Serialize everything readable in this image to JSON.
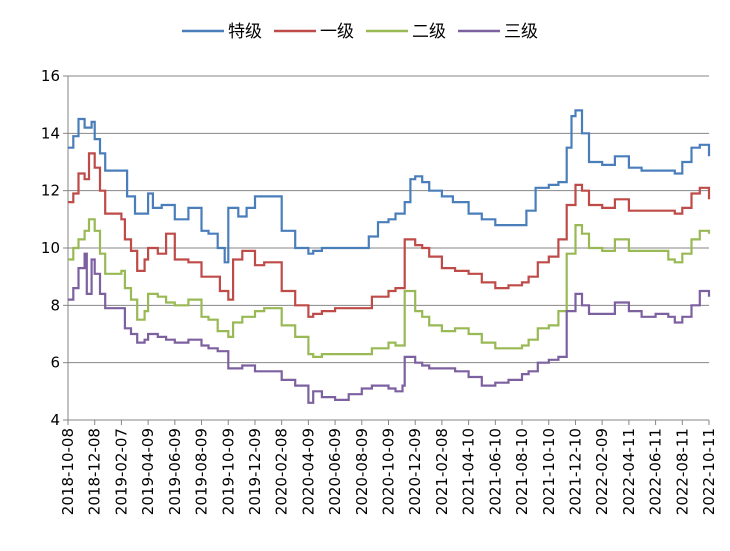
{
  "chart_data": {
    "type": "line",
    "title": "",
    "xlabel": "",
    "ylabel": "",
    "ylim": [
      4,
      16
    ],
    "yticks": [
      "4",
      "6",
      "8",
      "10",
      "12",
      "14",
      "16"
    ],
    "grid": "horizontal",
    "legend_position": "top",
    "x_tick_labels": [
      "2018-10-08",
      "2018-12-08",
      "2019-02-07",
      "2019-04-09",
      "2019-06-09",
      "2019-08-09",
      "2019-10-09",
      "2019-12-09",
      "2020-02-08",
      "2020-04-09",
      "2020-06-09",
      "2020-08-09",
      "2020-10-09",
      "2020-12-09",
      "2021-02-08",
      "2021-04-10",
      "2021-06-10",
      "2021-08-10",
      "2021-10-10",
      "2021-12-10",
      "2022-02-09",
      "2022-04-11",
      "2022-06-11",
      "2022-08-11",
      "2022-10-11"
    ],
    "series": [
      {
        "name": "特级",
        "color": "#4a7ebb",
        "points": [
          [
            "2018-10-08",
            13.5
          ],
          [
            "2018-10-20",
            13.9
          ],
          [
            "2018-11-01",
            14.5
          ],
          [
            "2018-11-15",
            14.2
          ],
          [
            "2018-12-01",
            14.4
          ],
          [
            "2018-12-08",
            13.8
          ],
          [
            "2018-12-20",
            13.3
          ],
          [
            "2019-01-01",
            12.7
          ],
          [
            "2019-02-07",
            12.7
          ],
          [
            "2019-02-20",
            11.8
          ],
          [
            "2019-03-10",
            11.2
          ],
          [
            "2019-04-01",
            11.2
          ],
          [
            "2019-04-09",
            11.9
          ],
          [
            "2019-04-20",
            11.4
          ],
          [
            "2019-05-10",
            11.5
          ],
          [
            "2019-06-09",
            11.0
          ],
          [
            "2019-07-10",
            11.4
          ],
          [
            "2019-08-09",
            10.6
          ],
          [
            "2019-08-25",
            10.5
          ],
          [
            "2019-09-15",
            10.0
          ],
          [
            "2019-10-01",
            9.5
          ],
          [
            "2019-10-09",
            11.4
          ],
          [
            "2019-11-01",
            11.1
          ],
          [
            "2019-11-20",
            11.4
          ],
          [
            "2019-12-09",
            11.8
          ],
          [
            "2019-12-30",
            11.8
          ],
          [
            "2020-02-08",
            10.6
          ],
          [
            "2020-03-10",
            10.0
          ],
          [
            "2020-04-09",
            9.8
          ],
          [
            "2020-04-20",
            9.9
          ],
          [
            "2020-05-10",
            10.0
          ],
          [
            "2020-06-09",
            10.0
          ],
          [
            "2020-07-10",
            10.0
          ],
          [
            "2020-08-09",
            10.0
          ],
          [
            "2020-08-25",
            10.4
          ],
          [
            "2020-09-15",
            10.9
          ],
          [
            "2020-10-09",
            11.0
          ],
          [
            "2020-10-25",
            11.2
          ],
          [
            "2020-11-15",
            11.6
          ],
          [
            "2020-11-28",
            12.4
          ],
          [
            "2020-12-09",
            12.5
          ],
          [
            "2020-12-25",
            12.3
          ],
          [
            "2021-01-10",
            12.0
          ],
          [
            "2021-02-08",
            11.8
          ],
          [
            "2021-03-05",
            11.6
          ],
          [
            "2021-04-10",
            11.2
          ],
          [
            "2021-05-10",
            11.0
          ],
          [
            "2021-06-10",
            10.8
          ],
          [
            "2021-07-10",
            10.8
          ],
          [
            "2021-08-10",
            10.8
          ],
          [
            "2021-08-20",
            11.3
          ],
          [
            "2021-09-10",
            12.1
          ],
          [
            "2021-10-10",
            12.2
          ],
          [
            "2021-11-01",
            12.3
          ],
          [
            "2021-11-20",
            13.5
          ],
          [
            "2021-12-01",
            14.6
          ],
          [
            "2021-12-10",
            14.8
          ],
          [
            "2021-12-25",
            14.0
          ],
          [
            "2022-01-10",
            13.0
          ],
          [
            "2022-02-09",
            12.9
          ],
          [
            "2022-03-10",
            13.2
          ],
          [
            "2022-04-11",
            12.8
          ],
          [
            "2022-05-10",
            12.7
          ],
          [
            "2022-06-11",
            12.7
          ],
          [
            "2022-07-10",
            12.7
          ],
          [
            "2022-07-25",
            12.6
          ],
          [
            "2022-08-11",
            13.0
          ],
          [
            "2022-09-01",
            13.5
          ],
          [
            "2022-09-20",
            13.6
          ],
          [
            "2022-10-11",
            13.2
          ]
        ]
      },
      {
        "name": "一级",
        "color": "#be4b48",
        "points": [
          [
            "2018-10-08",
            11.6
          ],
          [
            "2018-10-20",
            11.9
          ],
          [
            "2018-11-01",
            12.6
          ],
          [
            "2018-11-15",
            12.4
          ],
          [
            "2018-11-25",
            13.3
          ],
          [
            "2018-12-08",
            12.8
          ],
          [
            "2018-12-20",
            12.0
          ],
          [
            "2019-01-01",
            11.2
          ],
          [
            "2019-02-07",
            11.0
          ],
          [
            "2019-02-15",
            10.3
          ],
          [
            "2019-03-01",
            9.9
          ],
          [
            "2019-03-15",
            9.2
          ],
          [
            "2019-04-01",
            9.6
          ],
          [
            "2019-04-09",
            10.0
          ],
          [
            "2019-05-01",
            9.8
          ],
          [
            "2019-05-20",
            10.5
          ],
          [
            "2019-06-09",
            9.6
          ],
          [
            "2019-07-10",
            9.5
          ],
          [
            "2019-08-09",
            9.0
          ],
          [
            "2019-09-01",
            9.0
          ],
          [
            "2019-09-20",
            8.5
          ],
          [
            "2019-10-09",
            8.2
          ],
          [
            "2019-10-20",
            9.6
          ],
          [
            "2019-11-10",
            9.9
          ],
          [
            "2019-12-09",
            9.4
          ],
          [
            "2019-12-30",
            9.5
          ],
          [
            "2020-02-08",
            8.5
          ],
          [
            "2020-03-10",
            8.0
          ],
          [
            "2020-04-09",
            7.6
          ],
          [
            "2020-04-20",
            7.7
          ],
          [
            "2020-05-10",
            7.8
          ],
          [
            "2020-06-09",
            7.9
          ],
          [
            "2020-07-10",
            7.9
          ],
          [
            "2020-08-09",
            7.9
          ],
          [
            "2020-09-01",
            8.3
          ],
          [
            "2020-10-09",
            8.5
          ],
          [
            "2020-10-25",
            8.6
          ],
          [
            "2020-11-10",
            8.6
          ],
          [
            "2020-11-15",
            10.3
          ],
          [
            "2020-12-09",
            10.1
          ],
          [
            "2020-12-25",
            10.0
          ],
          [
            "2021-01-10",
            9.7
          ],
          [
            "2021-02-08",
            9.3
          ],
          [
            "2021-03-10",
            9.2
          ],
          [
            "2021-04-10",
            9.1
          ],
          [
            "2021-05-10",
            8.8
          ],
          [
            "2021-06-10",
            8.6
          ],
          [
            "2021-07-10",
            8.7
          ],
          [
            "2021-08-10",
            8.8
          ],
          [
            "2021-08-25",
            9.0
          ],
          [
            "2021-09-15",
            9.5
          ],
          [
            "2021-10-10",
            9.7
          ],
          [
            "2021-11-01",
            10.3
          ],
          [
            "2021-11-20",
            11.5
          ],
          [
            "2021-12-10",
            12.2
          ],
          [
            "2021-12-25",
            12.0
          ],
          [
            "2022-01-10",
            11.5
          ],
          [
            "2022-02-09",
            11.4
          ],
          [
            "2022-03-10",
            11.7
          ],
          [
            "2022-04-11",
            11.3
          ],
          [
            "2022-05-10",
            11.3
          ],
          [
            "2022-06-11",
            11.3
          ],
          [
            "2022-07-10",
            11.3
          ],
          [
            "2022-07-25",
            11.2
          ],
          [
            "2022-08-11",
            11.4
          ],
          [
            "2022-09-01",
            11.9
          ],
          [
            "2022-09-20",
            12.1
          ],
          [
            "2022-10-11",
            11.7
          ]
        ]
      },
      {
        "name": "二级",
        "color": "#98b954",
        "points": [
          [
            "2018-10-08",
            9.6
          ],
          [
            "2018-10-20",
            10.0
          ],
          [
            "2018-11-01",
            10.3
          ],
          [
            "2018-11-15",
            10.6
          ],
          [
            "2018-11-25",
            11.0
          ],
          [
            "2018-12-08",
            10.6
          ],
          [
            "2018-12-20",
            9.8
          ],
          [
            "2019-01-01",
            9.1
          ],
          [
            "2019-02-07",
            9.2
          ],
          [
            "2019-02-15",
            8.6
          ],
          [
            "2019-03-01",
            8.2
          ],
          [
            "2019-03-15",
            7.5
          ],
          [
            "2019-04-01",
            7.8
          ],
          [
            "2019-04-09",
            8.4
          ],
          [
            "2019-05-01",
            8.3
          ],
          [
            "2019-05-20",
            8.1
          ],
          [
            "2019-06-09",
            8.0
          ],
          [
            "2019-07-10",
            8.2
          ],
          [
            "2019-08-09",
            7.6
          ],
          [
            "2019-08-25",
            7.5
          ],
          [
            "2019-09-15",
            7.1
          ],
          [
            "2019-10-09",
            6.9
          ],
          [
            "2019-10-20",
            7.4
          ],
          [
            "2019-11-10",
            7.6
          ],
          [
            "2019-12-09",
            7.8
          ],
          [
            "2019-12-30",
            7.9
          ],
          [
            "2020-02-08",
            7.3
          ],
          [
            "2020-03-10",
            6.9
          ],
          [
            "2020-04-09",
            6.3
          ],
          [
            "2020-04-20",
            6.2
          ],
          [
            "2020-05-10",
            6.3
          ],
          [
            "2020-06-09",
            6.3
          ],
          [
            "2020-07-10",
            6.3
          ],
          [
            "2020-08-09",
            6.3
          ],
          [
            "2020-09-01",
            6.5
          ],
          [
            "2020-10-09",
            6.7
          ],
          [
            "2020-10-25",
            6.6
          ],
          [
            "2020-11-10",
            6.6
          ],
          [
            "2020-11-15",
            8.5
          ],
          [
            "2020-12-09",
            7.8
          ],
          [
            "2020-12-25",
            7.6
          ],
          [
            "2021-01-10",
            7.3
          ],
          [
            "2021-02-08",
            7.1
          ],
          [
            "2021-03-10",
            7.2
          ],
          [
            "2021-04-10",
            7.0
          ],
          [
            "2021-05-10",
            6.7
          ],
          [
            "2021-06-10",
            6.5
          ],
          [
            "2021-07-10",
            6.5
          ],
          [
            "2021-08-10",
            6.6
          ],
          [
            "2021-08-25",
            6.8
          ],
          [
            "2021-09-15",
            7.2
          ],
          [
            "2021-10-10",
            7.3
          ],
          [
            "2021-11-01",
            7.8
          ],
          [
            "2021-11-20",
            9.8
          ],
          [
            "2021-12-10",
            10.8
          ],
          [
            "2021-12-25",
            10.5
          ],
          [
            "2022-01-10",
            10.0
          ],
          [
            "2022-02-09",
            9.9
          ],
          [
            "2022-03-10",
            10.3
          ],
          [
            "2022-04-11",
            9.9
          ],
          [
            "2022-05-10",
            9.9
          ],
          [
            "2022-06-11",
            9.9
          ],
          [
            "2022-07-10",
            9.6
          ],
          [
            "2022-07-25",
            9.5
          ],
          [
            "2022-08-11",
            9.8
          ],
          [
            "2022-09-01",
            10.3
          ],
          [
            "2022-09-20",
            10.6
          ],
          [
            "2022-10-11",
            10.5
          ]
        ]
      },
      {
        "name": "三级",
        "color": "#7d60a0",
        "points": [
          [
            "2018-10-08",
            8.2
          ],
          [
            "2018-10-20",
            8.6
          ],
          [
            "2018-11-01",
            9.3
          ],
          [
            "2018-11-15",
            9.8
          ],
          [
            "2018-11-20",
            8.4
          ],
          [
            "2018-12-01",
            9.6
          ],
          [
            "2018-12-08",
            9.1
          ],
          [
            "2018-12-20",
            8.4
          ],
          [
            "2019-01-01",
            7.9
          ],
          [
            "2019-02-07",
            7.9
          ],
          [
            "2019-02-15",
            7.2
          ],
          [
            "2019-03-01",
            7.0
          ],
          [
            "2019-03-15",
            6.7
          ],
          [
            "2019-04-01",
            6.8
          ],
          [
            "2019-04-09",
            7.0
          ],
          [
            "2019-05-01",
            6.9
          ],
          [
            "2019-05-20",
            6.8
          ],
          [
            "2019-06-09",
            6.7
          ],
          [
            "2019-07-10",
            6.8
          ],
          [
            "2019-08-09",
            6.6
          ],
          [
            "2019-08-25",
            6.5
          ],
          [
            "2019-09-15",
            6.4
          ],
          [
            "2019-10-09",
            5.8
          ],
          [
            "2019-10-20",
            5.8
          ],
          [
            "2019-11-10",
            5.9
          ],
          [
            "2019-12-09",
            5.7
          ],
          [
            "2019-12-30",
            5.7
          ],
          [
            "2020-02-08",
            5.4
          ],
          [
            "2020-03-10",
            5.2
          ],
          [
            "2020-04-09",
            4.6
          ],
          [
            "2020-04-20",
            5.0
          ],
          [
            "2020-05-10",
            4.8
          ],
          [
            "2020-06-09",
            4.7
          ],
          [
            "2020-07-10",
            4.9
          ],
          [
            "2020-08-09",
            5.1
          ],
          [
            "2020-09-01",
            5.2
          ],
          [
            "2020-10-09",
            5.1
          ],
          [
            "2020-10-25",
            5.0
          ],
          [
            "2020-11-10",
            5.2
          ],
          [
            "2020-11-15",
            6.2
          ],
          [
            "2020-12-09",
            6.0
          ],
          [
            "2020-12-25",
            5.9
          ],
          [
            "2021-01-10",
            5.8
          ],
          [
            "2021-02-08",
            5.8
          ],
          [
            "2021-03-10",
            5.7
          ],
          [
            "2021-04-10",
            5.5
          ],
          [
            "2021-05-10",
            5.2
          ],
          [
            "2021-06-10",
            5.3
          ],
          [
            "2021-07-10",
            5.4
          ],
          [
            "2021-08-10",
            5.6
          ],
          [
            "2021-08-25",
            5.7
          ],
          [
            "2021-09-15",
            6.0
          ],
          [
            "2021-10-10",
            6.1
          ],
          [
            "2021-11-01",
            6.2
          ],
          [
            "2021-11-20",
            7.8
          ],
          [
            "2021-12-10",
            8.4
          ],
          [
            "2021-12-25",
            8.0
          ],
          [
            "2022-01-10",
            7.7
          ],
          [
            "2022-02-09",
            7.7
          ],
          [
            "2022-03-10",
            8.1
          ],
          [
            "2022-04-11",
            7.8
          ],
          [
            "2022-05-10",
            7.6
          ],
          [
            "2022-06-11",
            7.7
          ],
          [
            "2022-07-10",
            7.6
          ],
          [
            "2022-07-25",
            7.4
          ],
          [
            "2022-08-11",
            7.6
          ],
          [
            "2022-09-01",
            8.0
          ],
          [
            "2022-09-20",
            8.5
          ],
          [
            "2022-10-11",
            8.3
          ]
        ]
      }
    ]
  }
}
